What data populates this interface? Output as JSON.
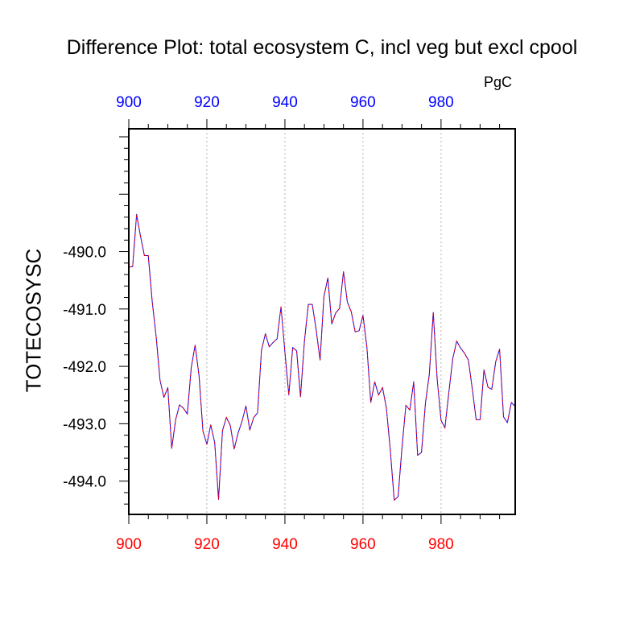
{
  "chart_data": {
    "type": "line",
    "title": "Difference Plot: total ecosystem C, incl veg but excl cpool",
    "units_label": "PgC",
    "ylabel": "TOTECOSYSC",
    "xlabel": "",
    "xlim": [
      900,
      999
    ],
    "ylim": [
      -494.58,
      -487.86
    ],
    "x_ticks": [
      900,
      920,
      940,
      960,
      980
    ],
    "x_tick_labels": [
      "900",
      "920",
      "940",
      "960",
      "980"
    ],
    "y_ticks": [
      -490.0,
      -491.0,
      -492.0,
      -493.0,
      -494.0
    ],
    "y_tick_labels": [
      "-490.0",
      "-491.0",
      "-492.0",
      "-493.0",
      "-494.0"
    ],
    "grid": "vertical dotted at x ticks",
    "colors": {
      "bottom_axis_labels": "#ff0000",
      "top_axis_labels": "#0000ff",
      "line_blue": "#0000ff",
      "line_red": "#ff0000"
    },
    "x": [
      900,
      901,
      902,
      903,
      904,
      905,
      906,
      907,
      908,
      909,
      910,
      911,
      912,
      913,
      914,
      915,
      916,
      917,
      918,
      919,
      920,
      921,
      922,
      923,
      924,
      925,
      926,
      927,
      928,
      929,
      930,
      931,
      932,
      933,
      934,
      935,
      936,
      937,
      938,
      939,
      940,
      941,
      942,
      943,
      944,
      945,
      946,
      947,
      948,
      949,
      950,
      951,
      952,
      953,
      954,
      955,
      956,
      957,
      958,
      959,
      960,
      961,
      962,
      963,
      964,
      965,
      966,
      967,
      968,
      969,
      970,
      971,
      972,
      973,
      974,
      975,
      976,
      977,
      978,
      979,
      980,
      981,
      982,
      983,
      984,
      985,
      986,
      987,
      988,
      989,
      990,
      991,
      992,
      993,
      994,
      995,
      996,
      997,
      998,
      999
    ],
    "series": [
      {
        "values": [
          -490.27,
          -490.26,
          -489.35,
          -489.73,
          -490.07,
          -490.07,
          -490.87,
          -491.47,
          -492.24,
          -492.54,
          -492.37,
          -493.43,
          -492.93,
          -492.67,
          -492.73,
          -492.83,
          -492.02,
          -491.63,
          -492.17,
          -493.13,
          -493.36,
          -493.02,
          -493.33,
          -494.32,
          -493.12,
          -492.89,
          -493.03,
          -493.44,
          -493.16,
          -492.96,
          -492.69,
          -493.11,
          -492.89,
          -492.81,
          -491.72,
          -491.43,
          -491.66,
          -491.58,
          -491.52,
          -490.96,
          -491.75,
          -492.5,
          -491.67,
          -491.73,
          -492.53,
          -491.56,
          -490.92,
          -490.92,
          -491.36,
          -491.89,
          -490.78,
          -490.46,
          -491.26,
          -491.07,
          -490.99,
          -490.35,
          -490.88,
          -491.05,
          -491.4,
          -491.38,
          -491.11,
          -491.67,
          -492.63,
          -492.27,
          -492.5,
          -492.37,
          -492.73,
          -493.45,
          -494.33,
          -494.27,
          -493.41,
          -492.68,
          -492.76,
          -492.27,
          -493.55,
          -493.5,
          -492.64,
          -492.14,
          -491.06,
          -492.21,
          -492.94,
          -493.07,
          -492.45,
          -491.87,
          -491.56,
          -491.68,
          -491.77,
          -491.89,
          -492.39,
          -492.93,
          -492.93,
          -492.06,
          -492.36,
          -492.4,
          -491.92,
          -491.7,
          -492.88,
          -492.98,
          -492.63,
          -492.7
        ]
      }
    ]
  }
}
